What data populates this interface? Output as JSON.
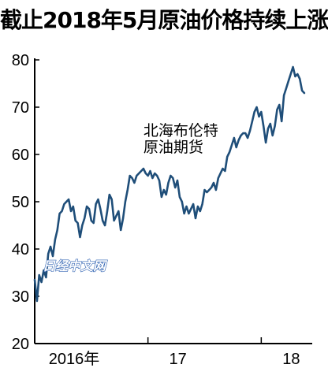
{
  "chart_data": {
    "type": "line",
    "title": "截止2018年5月原油价格持续上涨",
    "xlabel": "",
    "ylabel": "",
    "ylim": [
      20,
      80
    ],
    "yticks": [
      20,
      30,
      40,
      50,
      60,
      70,
      80
    ],
    "xlim": [
      2016.0,
      2018.45
    ],
    "xticks": [
      {
        "value": 2016.0,
        "label": "2016年"
      },
      {
        "value": 2017.0,
        "label": "17"
      },
      {
        "value": 2018.0,
        "label": "18"
      }
    ],
    "grid": false,
    "series": [
      {
        "name": "北海布伦特原油期货",
        "color": "#1f4e79",
        "x": [
          2016.0,
          2016.02,
          2016.04,
          2016.06,
          2016.08,
          2016.1,
          2016.12,
          2016.14,
          2016.16,
          2016.18,
          2016.2,
          2016.22,
          2016.24,
          2016.26,
          2016.28,
          2016.3,
          2016.32,
          2016.34,
          2016.36,
          2016.38,
          2016.4,
          2016.42,
          2016.44,
          2016.46,
          2016.48,
          2016.5,
          2016.52,
          2016.54,
          2016.56,
          2016.58,
          2016.6,
          2016.62,
          2016.64,
          2016.66,
          2016.68,
          2016.7,
          2016.72,
          2016.74,
          2016.76,
          2016.78,
          2016.8,
          2016.82,
          2016.84,
          2016.86,
          2016.88,
          2016.9,
          2016.92,
          2016.94,
          2016.96,
          2016.98,
          2017.0,
          2017.02,
          2017.04,
          2017.06,
          2017.08,
          2017.1,
          2017.12,
          2017.14,
          2017.16,
          2017.18,
          2017.2,
          2017.22,
          2017.24,
          2017.26,
          2017.28,
          2017.3,
          2017.32,
          2017.34,
          2017.36,
          2017.38,
          2017.4,
          2017.42,
          2017.44,
          2017.46,
          2017.48,
          2017.5,
          2017.52,
          2017.54,
          2017.56,
          2017.58,
          2017.6,
          2017.62,
          2017.64,
          2017.66,
          2017.68,
          2017.7,
          2017.72,
          2017.74,
          2017.76,
          2017.78,
          2017.8,
          2017.82,
          2017.84,
          2017.86,
          2017.88,
          2017.9,
          2017.92,
          2017.94,
          2017.96,
          2017.98,
          2018.0,
          2018.02,
          2018.04,
          2018.06,
          2018.08,
          2018.1,
          2018.12,
          2018.14,
          2018.16,
          2018.18,
          2018.2,
          2018.22,
          2018.24,
          2018.26,
          2018.28,
          2018.3,
          2018.32,
          2018.34,
          2018.36,
          2018.38
        ],
        "values": [
          33.5,
          29.0,
          34.5,
          33.0,
          35.5,
          34.0,
          39.0,
          40.5,
          38.5,
          42.0,
          44.0,
          47.5,
          48.0,
          49.5,
          50.0,
          50.5,
          48.0,
          49.0,
          46.0,
          45.5,
          42.5,
          45.0,
          46.5,
          49.0,
          48.5,
          46.0,
          45.5,
          49.5,
          50.5,
          48.5,
          46.0,
          45.0,
          48.0,
          51.5,
          50.5,
          46.0,
          47.0,
          48.0,
          44.0,
          46.5,
          50.0,
          52.5,
          55.5,
          55.0,
          54.0,
          55.5,
          56.0,
          56.5,
          57.0,
          56.0,
          55.5,
          56.5,
          55.0,
          56.0,
          55.5,
          54.5,
          51.0,
          52.5,
          51.5,
          54.0,
          55.5,
          55.0,
          53.0,
          54.5,
          51.0,
          50.0,
          47.5,
          49.0,
          47.5,
          48.5,
          49.5,
          46.5,
          49.0,
          48.0,
          49.5,
          52.5,
          52.0,
          52.5,
          53.0,
          54.0,
          52.5,
          55.0,
          56.0,
          57.0,
          56.5,
          59.5,
          60.5,
          62.0,
          63.5,
          61.5,
          63.0,
          64.0,
          64.5,
          64.5,
          63.5,
          65.0,
          67.0,
          69.0,
          70.0,
          68.0,
          69.0,
          66.0,
          62.5,
          65.5,
          66.5,
          64.0,
          66.0,
          69.5,
          70.5,
          67.0,
          72.5,
          74.0,
          75.5,
          77.0,
          78.5,
          76.5,
          77.0,
          76.0,
          73.5,
          73.0
        ]
      }
    ],
    "annotations": [
      {
        "text": "北海布伦特",
        "x": 2016.96,
        "y": 64.0
      },
      {
        "text": "原油期货",
        "x": 2016.96,
        "y": 60.5
      }
    ],
    "watermark": "日经中文网"
  }
}
